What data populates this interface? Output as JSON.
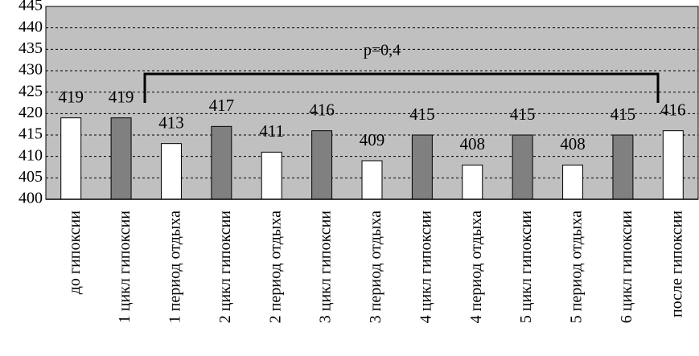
{
  "chart_data": {
    "type": "bar",
    "categories": [
      "до гипоксии",
      "1 цикл гипоксии",
      "1 период отдыха",
      "2 цикл гипоксии",
      "2 период отдыха",
      "3 цикл гипоксии",
      "3 период отдыха",
      "4 цикл гипоксии",
      "4 период отдыха",
      "5 цикл гипоксии",
      "5 период отдыха",
      "6 цикл гипоксии",
      "после гипоксии"
    ],
    "values": [
      419,
      419,
      413,
      417,
      411,
      416,
      409,
      415,
      408,
      415,
      408,
      415,
      416
    ],
    "colors": [
      "#ffffff",
      "#808080",
      "#ffffff",
      "#808080",
      "#ffffff",
      "#808080",
      "#ffffff",
      "#808080",
      "#ffffff",
      "#808080",
      "#ffffff",
      "#808080",
      "#ffffff"
    ],
    "ylim": [
      400,
      445
    ],
    "yticks": [
      400,
      405,
      410,
      415,
      420,
      425,
      430,
      435,
      440,
      445
    ],
    "grid": true,
    "annotation": "p=0,4"
  }
}
